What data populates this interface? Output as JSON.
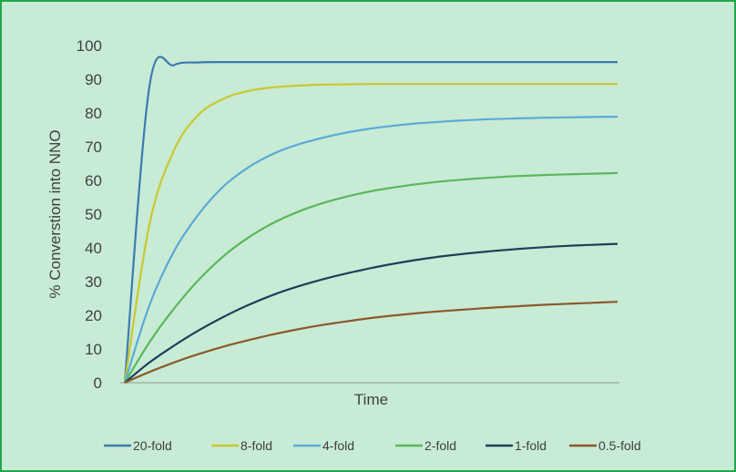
{
  "chart_data": {
    "type": "line",
    "title": "",
    "xlabel": "Time",
    "ylabel": "% Converstion into NNO",
    "ylim": [
      0,
      100
    ],
    "yticks": [
      0,
      10,
      20,
      30,
      40,
      50,
      60,
      70,
      80,
      90,
      100
    ],
    "x": [
      0,
      0.05,
      0.1,
      0.15,
      0.2,
      0.25,
      0.3,
      0.35,
      0.4,
      0.45,
      0.5,
      0.55,
      0.6,
      0.65,
      0.7,
      0.75,
      0.8,
      0.85,
      0.9,
      0.95,
      1
    ],
    "grid": false,
    "legend_position": "bottom",
    "background_color": "#c8ebd6",
    "border_color": "#22a74a",
    "series": [
      {
        "name": "20-fold",
        "color": "#3c7bb0",
        "values": [
          0,
          88,
          94.2,
          95,
          95.1,
          95.1,
          95.1,
          95.1,
          95.1,
          95.1,
          95.1,
          95.1,
          95.1,
          95.1,
          95.1,
          95.1,
          95.1,
          95.1,
          95.1,
          95.1,
          95.1
        ]
      },
      {
        "name": "8-fold",
        "color": "#c8c830",
        "values": [
          0,
          47,
          69,
          79.5,
          84.2,
          86.5,
          87.6,
          88.1,
          88.4,
          88.5,
          88.6,
          88.6,
          88.6,
          88.6,
          88.6,
          88.6,
          88.6,
          88.6,
          88.6,
          88.6,
          88.6
        ]
      },
      {
        "name": "4-fold",
        "color": "#5aaad6",
        "values": [
          0,
          23,
          39,
          50,
          58.2,
          63.8,
          67.8,
          70.6,
          72.6,
          74.2,
          75.4,
          76.3,
          77,
          77.5,
          77.9,
          78.2,
          78.4,
          78.6,
          78.7,
          78.8,
          78.9
        ]
      },
      {
        "name": "2-fold",
        "color": "#5ab85a",
        "values": [
          0,
          12,
          22,
          30.5,
          37.5,
          43,
          47.3,
          50.6,
          53.2,
          55.2,
          56.8,
          58,
          59,
          59.8,
          60.4,
          60.9,
          61.3,
          61.6,
          61.8,
          62,
          62.2
        ]
      },
      {
        "name": "1-fold",
        "color": "#1f3f5a",
        "values": [
          0,
          6,
          11,
          15.5,
          19.5,
          23,
          26,
          28.5,
          30.6,
          32.4,
          34,
          35.4,
          36.6,
          37.6,
          38.4,
          39.1,
          39.7,
          40.2,
          40.6,
          40.9,
          41.2
        ]
      },
      {
        "name": "0.5-fold",
        "color": "#8b5a2b",
        "values": [
          0,
          3.2,
          6,
          8.5,
          10.7,
          12.6,
          14.3,
          15.8,
          17.1,
          18.2,
          19.2,
          20,
          20.7,
          21.3,
          21.8,
          22.3,
          22.7,
          23.1,
          23.4,
          23.7,
          24
        ]
      }
    ]
  }
}
